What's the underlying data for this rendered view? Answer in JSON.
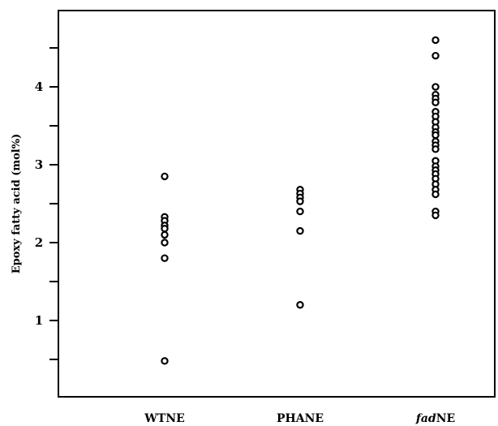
{
  "chart_data": {
    "type": "scatter",
    "title": "",
    "xlabel": "",
    "ylabel": "Epoxy fatty acid (mol%)",
    "categories": [
      {
        "label": "WTNE",
        "italic_prefix": "",
        "suffix": ""
      },
      {
        "label": "PHANE",
        "italic_prefix": "",
        "suffix": ""
      },
      {
        "label": "fadNE",
        "italic_prefix": "fad",
        "suffix": "NE"
      }
    ],
    "yticks": [
      0.5,
      1,
      1.5,
      2,
      2.5,
      3,
      3.5,
      4,
      4.5
    ],
    "ytick_labels": [
      {
        "value": 1,
        "label": "1"
      },
      {
        "value": 2,
        "label": "2"
      },
      {
        "value": 3,
        "label": "3"
      },
      {
        "value": 4,
        "label": "4"
      }
    ],
    "ylim": [
      0.02,
      4.98
    ],
    "series": [
      {
        "category": "WTNE",
        "values": [
          2.85,
          2.33,
          2.28,
          2.22,
          2.18,
          2.1,
          2.0,
          1.8,
          0.48
        ]
      },
      {
        "category": "PHANE",
        "values": [
          2.68,
          2.63,
          2.58,
          2.53,
          2.4,
          2.15,
          1.2
        ]
      },
      {
        "category": "fadNE",
        "values": [
          4.6,
          4.4,
          4.0,
          3.9,
          3.85,
          3.8,
          3.68,
          3.62,
          3.55,
          3.48,
          3.42,
          3.38,
          3.3,
          3.25,
          3.2,
          3.05,
          2.98,
          2.93,
          2.88,
          2.82,
          2.75,
          2.68,
          2.62,
          2.4,
          2.35
        ]
      }
    ],
    "grid": false,
    "legend": "none",
    "marker_color": "#000000"
  }
}
